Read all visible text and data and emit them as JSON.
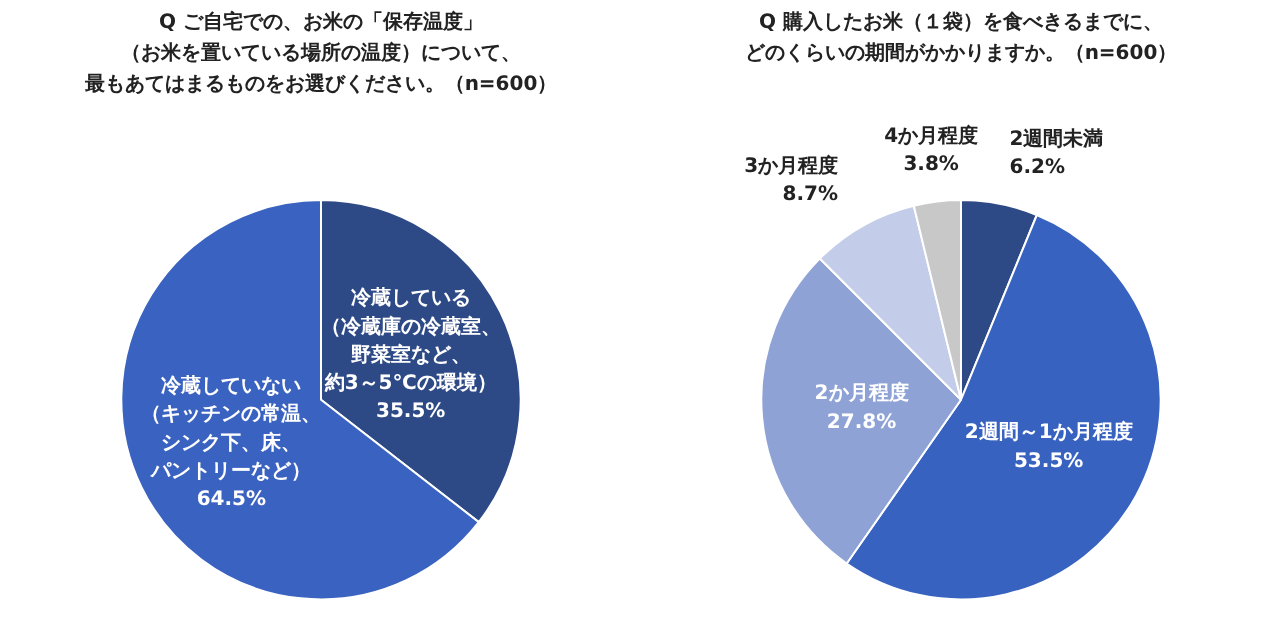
{
  "chart_data": [
    {
      "type": "pie",
      "title": "Q ご自宅での、お米の「保存温度」（お米を置いている場所の温度）について、最もあてはまるものをお選びください。（n=600）",
      "categories": [
        "冷蔵している（冷蔵庫の冷蔵室、野菜室など、約3～5℃の環境）",
        "冷蔵していない（キッチンの常温、シンク下、床、パントリーなど）"
      ],
      "values": [
        35.5,
        64.5
      ],
      "colors": [
        "#2e4a86",
        "#3a62c0"
      ],
      "value_labels": [
        "35.5%",
        "64.5%"
      ]
    },
    {
      "type": "pie",
      "title": "Q 購入したお米（１袋）を食べきるまでに、どのくらいの期間がかかりますか。（n=600）",
      "categories": [
        "2週間未満",
        "2週間～1か月程度",
        "2か月程度",
        "3か月程度",
        "4か月程度"
      ],
      "values": [
        6.2,
        53.5,
        27.8,
        8.7,
        3.8
      ],
      "colors": [
        "#2e4a86",
        "#3862bf",
        "#8ea2d6",
        "#c3cde9",
        "#c8c8c8"
      ],
      "value_labels": [
        "6.2%",
        "53.5%",
        "27.8%",
        "8.7%",
        "3.8%"
      ]
    }
  ]
}
